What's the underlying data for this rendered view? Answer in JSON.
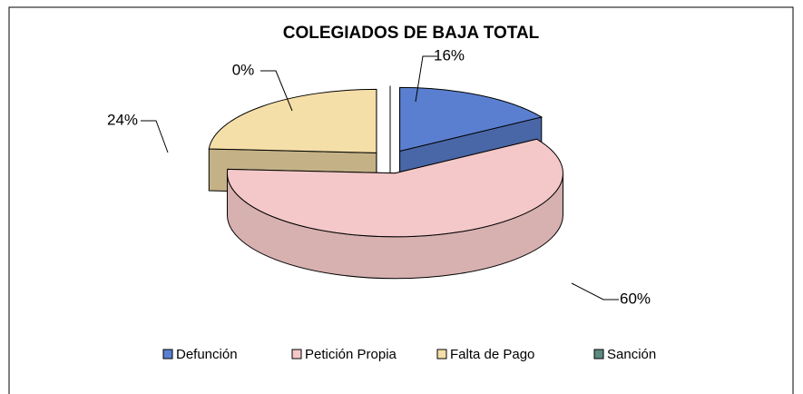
{
  "chart_data": {
    "type": "pie",
    "title": "COLEGIADOS DE BAJA TOTAL",
    "categories": [
      "Defunción",
      "Petición Propia",
      "Falta de Pago",
      "Sanción"
    ],
    "values": [
      16,
      60,
      24,
      0
    ],
    "value_labels": [
      "16%",
      "60%",
      "24%",
      "0%"
    ],
    "colors": [
      "#5b7fd0",
      "#f4c8c8",
      "#f5dfa8",
      "#5c8a80"
    ],
    "legend": "bottom"
  }
}
